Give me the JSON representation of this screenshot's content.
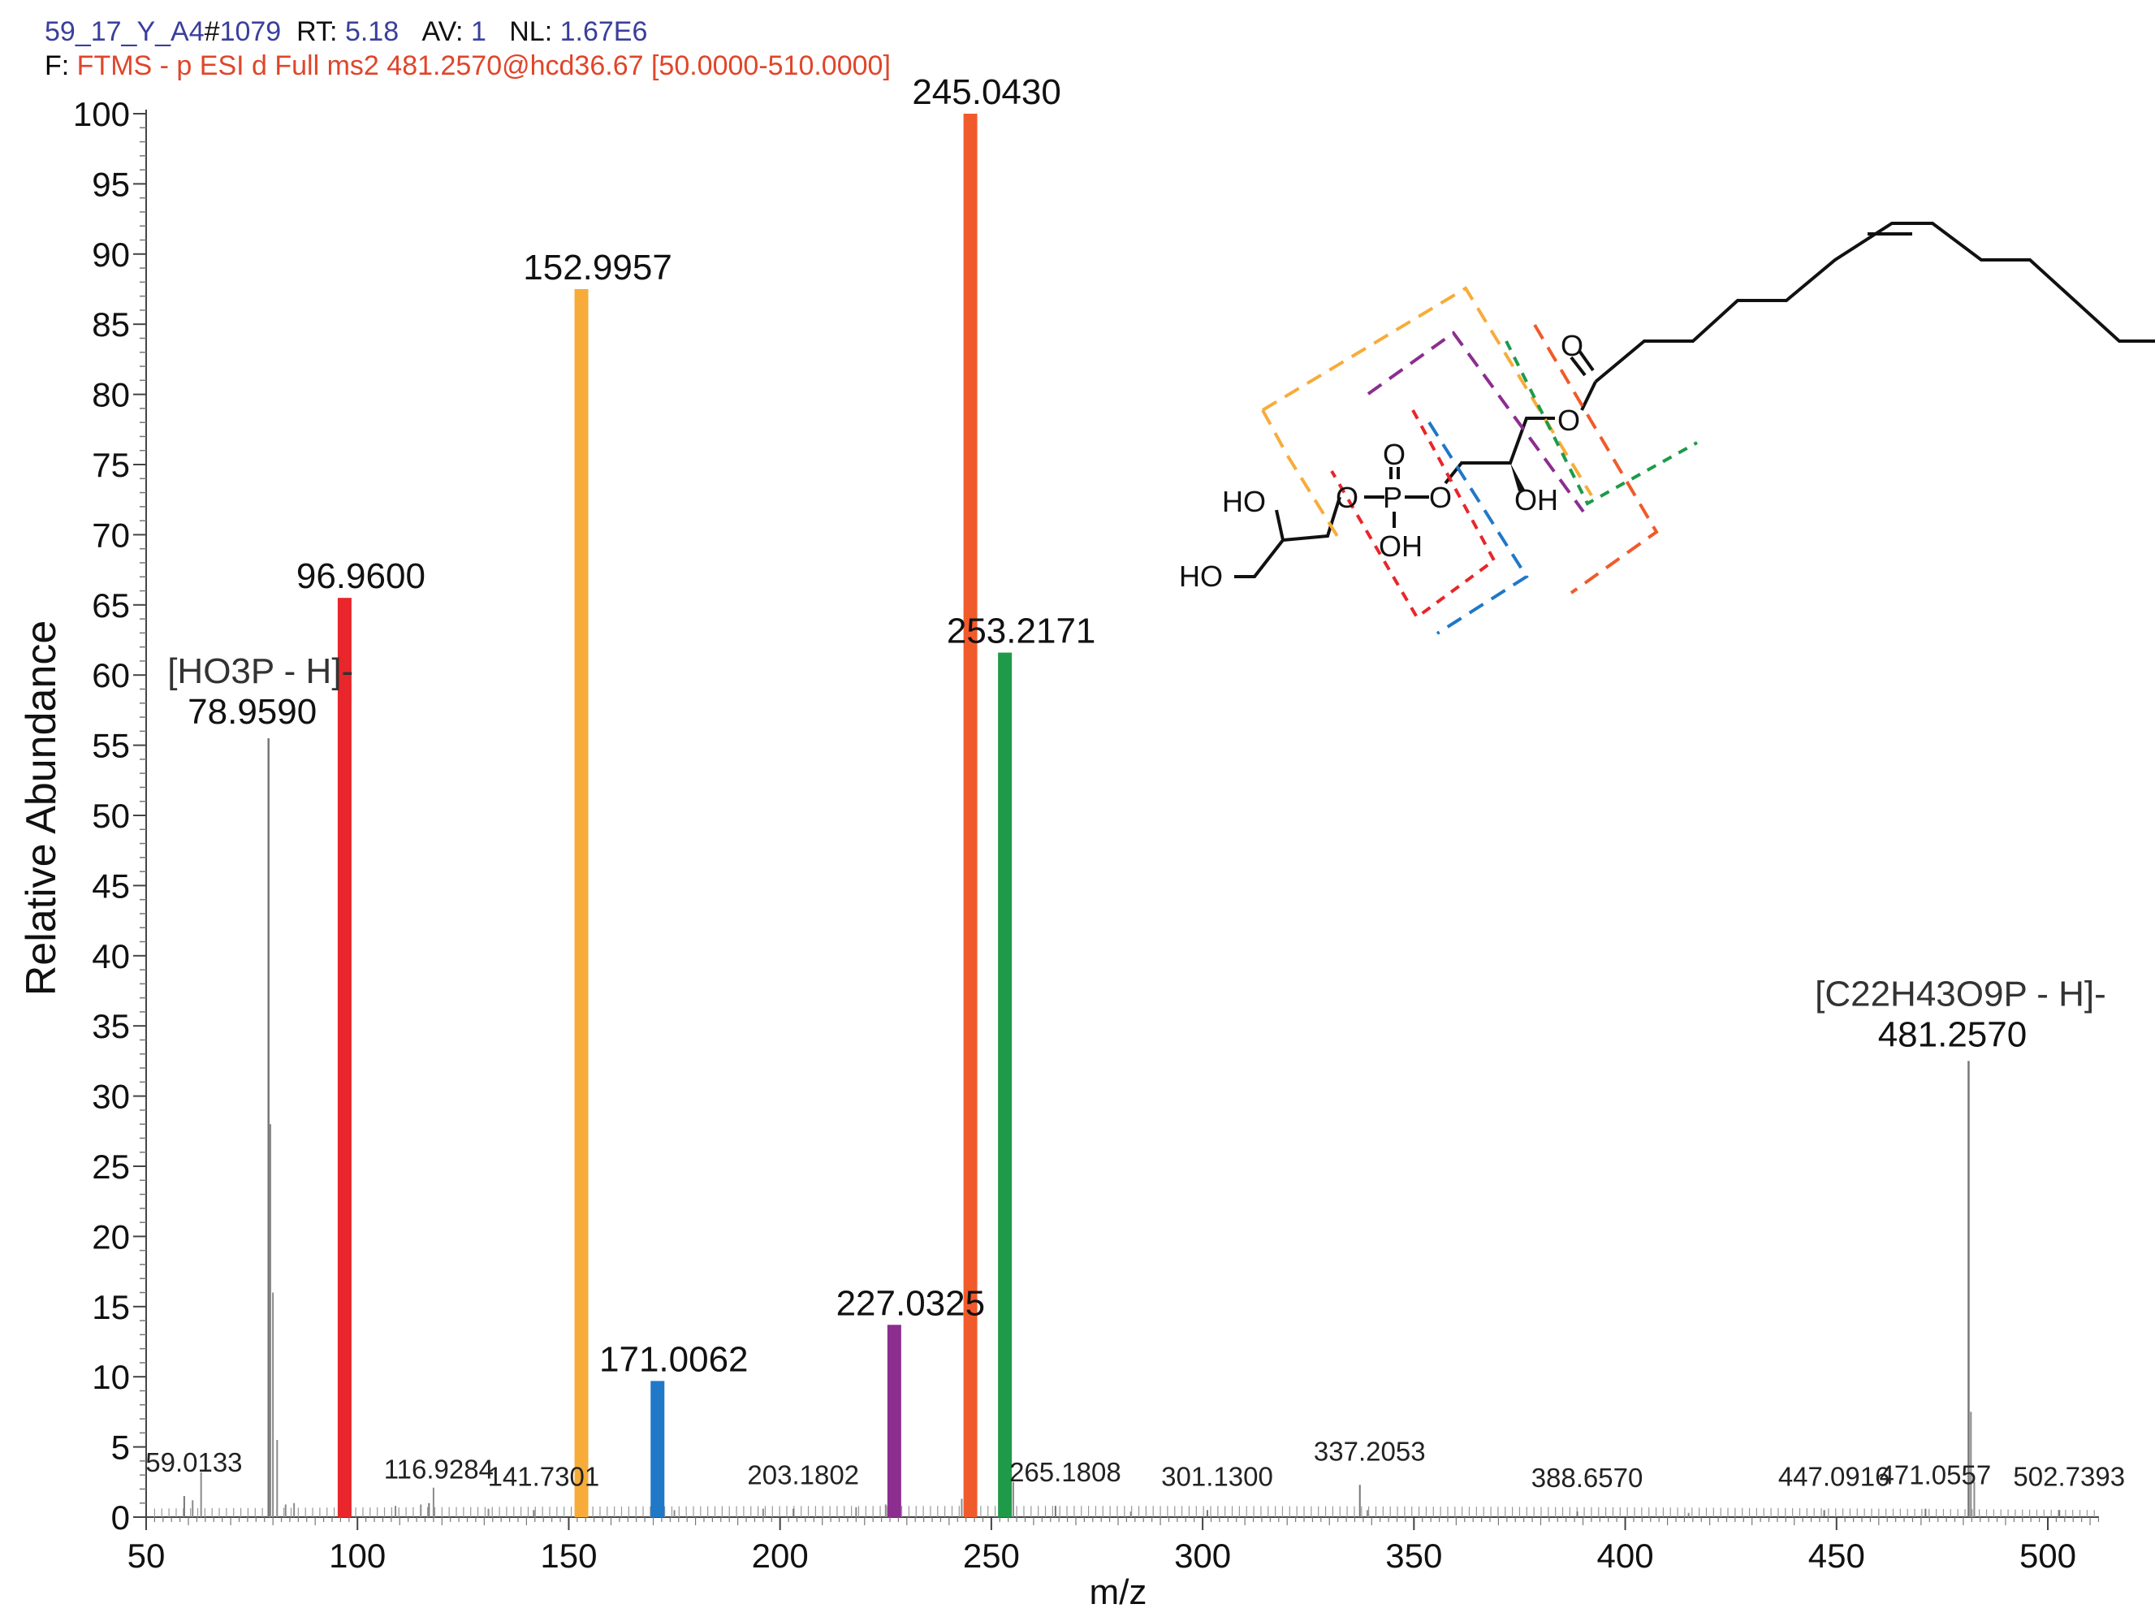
{
  "header": {
    "file_id": "59_17_Y_A4",
    "scan_prefix": "#",
    "scan_number": "1079",
    "rt_label": "RT:",
    "rt_value": "5.18",
    "av_label": "AV:",
    "av_value": "1",
    "nl_label": "NL:",
    "nl_value": "1.67E6",
    "filter_label": "F:",
    "filter_text": "FTMS - p ESI d Full ms2 481.2570@hcd36.67 [50.0000-510.0000]"
  },
  "colors": {
    "red": "#e8262b",
    "orange_yellow": "#f7ac3a",
    "blue": "#1f78c8",
    "purple": "#8b2e8f",
    "orange": "#f15a2b",
    "green": "#1e9a48",
    "gray": "#8a8a8a"
  },
  "chart_data": {
    "type": "bar",
    "title": "",
    "xlabel": "m/z",
    "ylabel": "Relative Abundance",
    "xlim": [
      50,
      513
    ],
    "ylim": [
      0,
      100
    ],
    "xticks": [
      50,
      100,
      150,
      200,
      250,
      300,
      350,
      400,
      450,
      500
    ],
    "yticks": [
      0,
      5,
      10,
      15,
      20,
      25,
      30,
      35,
      40,
      45,
      50,
      55,
      60,
      65,
      70,
      75,
      80,
      85,
      90,
      95,
      100
    ],
    "highlighted_peaks": [
      {
        "mz": 96.96,
        "label": "96.9600",
        "value": 65.5,
        "color": "#e8262b"
      },
      {
        "mz": 152.9957,
        "label": "152.9957",
        "value": 87.5,
        "color": "#f7ac3a"
      },
      {
        "mz": 171.0062,
        "label": "171.0062",
        "value": 9.7,
        "color": "#1f78c8"
      },
      {
        "mz": 227.0325,
        "label": "227.0325",
        "value": 13.7,
        "color": "#8b2e8f"
      },
      {
        "mz": 245.043,
        "label": "245.0430",
        "value": 100,
        "color": "#f15a2b"
      },
      {
        "mz": 253.2171,
        "label": "253.2171",
        "value": 61.6,
        "color": "#1e9a48"
      }
    ],
    "annotated_peaks": [
      {
        "mz": 78.959,
        "label": "78.9590",
        "formula": "[HO3P - H]-",
        "value": 55.5
      },
      {
        "mz": 481.257,
        "label": "481.2570",
        "formula": "[C22H43O9P - H]-",
        "value": 32.5
      }
    ],
    "minor_labels": [
      {
        "mz": 59.0133,
        "label": "59.0133",
        "value": 1.5
      },
      {
        "mz": 116.9284,
        "label": "116.9284",
        "value": 1.0
      },
      {
        "mz": 141.7301,
        "label": "141.7301",
        "value": 0.5
      },
      {
        "mz": 203.1802,
        "label": "203.1802",
        "value": 0.6
      },
      {
        "mz": 265.1808,
        "label": "265.1808",
        "value": 0.8
      },
      {
        "mz": 301.13,
        "label": "301.1300",
        "value": 0.5
      },
      {
        "mz": 337.2053,
        "label": "337.2053",
        "value": 2.3
      },
      {
        "mz": 388.657,
        "label": "388.6570",
        "value": 0.4
      },
      {
        "mz": 447.0916,
        "label": "447.0916",
        "value": 0.5
      },
      {
        "mz": 471.0557,
        "label": "471.0557",
        "value": 0.6
      },
      {
        "mz": 502.7393,
        "label": "502.7393",
        "value": 0.5
      }
    ],
    "noise_peaks": [
      {
        "mz": 61.0,
        "value": 1.2
      },
      {
        "mz": 63.0,
        "value": 3.2
      },
      {
        "mz": 79.4,
        "value": 28.0
      },
      {
        "mz": 80.0,
        "value": 16.0
      },
      {
        "mz": 81.0,
        "value": 5.5
      },
      {
        "mz": 83.0,
        "value": 0.9
      },
      {
        "mz": 85.0,
        "value": 1.0
      },
      {
        "mz": 97.9,
        "value": 1.8
      },
      {
        "mz": 109.0,
        "value": 0.8
      },
      {
        "mz": 115.0,
        "value": 0.9
      },
      {
        "mz": 118.0,
        "value": 2.1
      },
      {
        "mz": 131.0,
        "value": 0.6
      },
      {
        "mz": 154.0,
        "value": 1.6
      },
      {
        "mz": 175.0,
        "value": 0.5
      },
      {
        "mz": 196.0,
        "value": 0.6
      },
      {
        "mz": 218.0,
        "value": 0.7
      },
      {
        "mz": 225.0,
        "value": 0.9
      },
      {
        "mz": 228.0,
        "value": 0.8
      },
      {
        "mz": 243.0,
        "value": 1.3
      },
      {
        "mz": 246.0,
        "value": 9.5
      },
      {
        "mz": 254.2,
        "value": 20.5
      },
      {
        "mz": 255.2,
        "value": 2.5
      },
      {
        "mz": 283.0,
        "value": 0.4
      },
      {
        "mz": 339.0,
        "value": 0.5
      },
      {
        "mz": 415.0,
        "value": 0.3
      },
      {
        "mz": 481.8,
        "value": 7.5
      },
      {
        "mz": 482.6,
        "value": 2.5
      }
    ]
  },
  "structure": {
    "labels": [
      "HO",
      "HO",
      "O",
      "P",
      "O",
      "O",
      "OH",
      "O",
      "OH",
      "O",
      "O"
    ]
  }
}
